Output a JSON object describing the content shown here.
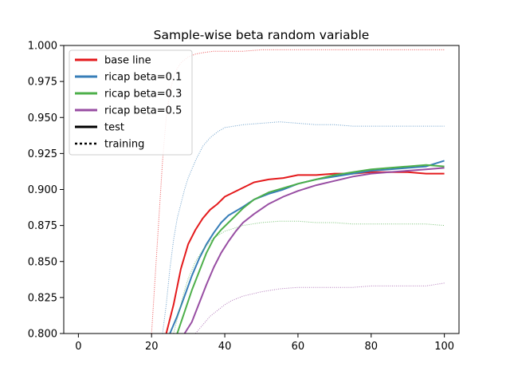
{
  "chart_data": {
    "type": "line",
    "title": "Sample-wise beta random variable",
    "xlabel": "",
    "ylabel": "",
    "xlim": [
      -4,
      104
    ],
    "ylim": [
      0.8,
      1.0
    ],
    "xticks": [
      0,
      20,
      40,
      60,
      80,
      100
    ],
    "yticks": [
      "0.800",
      "0.825",
      "0.850",
      "0.875",
      "0.900",
      "0.925",
      "0.950",
      "0.975",
      "1.000"
    ],
    "grid": false,
    "legend_position": "top-left",
    "legend": [
      {
        "label": "base line",
        "color": "#e41a1c",
        "style": "solid"
      },
      {
        "label": "ricap beta=0.1",
        "color": "#377eb8",
        "style": "solid"
      },
      {
        "label": "ricap beta=0.3",
        "color": "#4daf4a",
        "style": "solid"
      },
      {
        "label": "ricap beta=0.5",
        "color": "#984ea3",
        "style": "solid"
      },
      {
        "label": "test",
        "color": "#000000",
        "style": "solid"
      },
      {
        "label": "training",
        "color": "#000000",
        "style": "dotted"
      }
    ],
    "series": [
      {
        "color": "#e41a1c",
        "style": "solid",
        "x": [
          24,
          26,
          28,
          30,
          32,
          34,
          36,
          38,
          40,
          44,
          48,
          52,
          56,
          60,
          65,
          70,
          75,
          80,
          85,
          90,
          95,
          100
        ],
        "y": [
          0.8,
          0.82,
          0.845,
          0.862,
          0.872,
          0.88,
          0.886,
          0.89,
          0.895,
          0.9,
          0.905,
          0.907,
          0.908,
          0.91,
          0.91,
          0.911,
          0.911,
          0.912,
          0.912,
          0.912,
          0.911,
          0.911
        ]
      },
      {
        "color": "#377eb8",
        "style": "solid",
        "x": [
          25,
          27,
          29,
          31,
          33,
          35,
          37,
          39,
          41,
          43,
          45,
          48,
          52,
          56,
          60,
          65,
          70,
          75,
          80,
          85,
          90,
          95,
          100
        ],
        "y": [
          0.8,
          0.812,
          0.826,
          0.84,
          0.852,
          0.862,
          0.87,
          0.877,
          0.882,
          0.885,
          0.888,
          0.893,
          0.897,
          0.9,
          0.904,
          0.907,
          0.909,
          0.911,
          0.913,
          0.914,
          0.915,
          0.916,
          0.92
        ]
      },
      {
        "color": "#4daf4a",
        "style": "solid",
        "x": [
          27,
          29,
          31,
          33,
          35,
          37,
          39,
          41,
          43,
          45,
          48,
          52,
          56,
          60,
          65,
          70,
          75,
          80,
          85,
          90,
          95,
          100
        ],
        "y": [
          0.8,
          0.815,
          0.83,
          0.843,
          0.856,
          0.866,
          0.872,
          0.877,
          0.882,
          0.887,
          0.893,
          0.898,
          0.901,
          0.904,
          0.907,
          0.91,
          0.912,
          0.914,
          0.915,
          0.916,
          0.917,
          0.916
        ]
      },
      {
        "color": "#984ea3",
        "style": "solid",
        "x": [
          29,
          31,
          33,
          35,
          37,
          39,
          41,
          43,
          45,
          48,
          52,
          56,
          60,
          65,
          70,
          75,
          80,
          85,
          90,
          95,
          100
        ],
        "y": [
          0.8,
          0.808,
          0.821,
          0.834,
          0.846,
          0.856,
          0.864,
          0.871,
          0.877,
          0.883,
          0.89,
          0.895,
          0.899,
          0.903,
          0.906,
          0.909,
          0.911,
          0.912,
          0.913,
          0.914,
          0.915
        ]
      },
      {
        "color": "#e41a1c",
        "style": "dotted",
        "x": [
          20,
          21,
          22,
          23,
          24,
          25,
          26,
          27,
          28,
          30,
          32,
          34,
          37,
          40,
          45,
          50,
          60,
          70,
          80,
          90,
          100
        ],
        "y": [
          0.8,
          0.84,
          0.88,
          0.92,
          0.95,
          0.968,
          0.978,
          0.984,
          0.988,
          0.992,
          0.994,
          0.995,
          0.996,
          0.996,
          0.996,
          0.997,
          0.997,
          0.997,
          0.997,
          0.997,
          0.997
        ]
      },
      {
        "color": "#377eb8",
        "style": "dotted",
        "x": [
          23,
          24,
          25,
          26,
          27,
          28,
          29,
          30,
          32,
          34,
          36,
          38,
          40,
          45,
          50,
          55,
          60,
          65,
          70,
          75,
          80,
          85,
          90,
          95,
          100
        ],
        "y": [
          0.8,
          0.82,
          0.845,
          0.865,
          0.88,
          0.89,
          0.9,
          0.908,
          0.92,
          0.93,
          0.936,
          0.94,
          0.943,
          0.945,
          0.946,
          0.947,
          0.946,
          0.945,
          0.945,
          0.944,
          0.944,
          0.944,
          0.944,
          0.944,
          0.944
        ]
      },
      {
        "color": "#4daf4a",
        "style": "dotted",
        "x": [
          26,
          27,
          28,
          29,
          30,
          32,
          34,
          36,
          38,
          40,
          45,
          50,
          55,
          60,
          65,
          70,
          75,
          80,
          85,
          90,
          95,
          100
        ],
        "y": [
          0.8,
          0.81,
          0.82,
          0.83,
          0.838,
          0.85,
          0.858,
          0.864,
          0.868,
          0.871,
          0.875,
          0.877,
          0.878,
          0.878,
          0.877,
          0.877,
          0.876,
          0.876,
          0.876,
          0.876,
          0.876,
          0.875
        ]
      },
      {
        "color": "#984ea3",
        "style": "dotted",
        "x": [
          32,
          34,
          36,
          38,
          40,
          42,
          45,
          50,
          55,
          60,
          65,
          70,
          75,
          80,
          85,
          90,
          95,
          100
        ],
        "y": [
          0.8,
          0.806,
          0.812,
          0.816,
          0.82,
          0.823,
          0.826,
          0.829,
          0.831,
          0.832,
          0.832,
          0.832,
          0.832,
          0.833,
          0.833,
          0.833,
          0.833,
          0.835
        ]
      }
    ]
  }
}
